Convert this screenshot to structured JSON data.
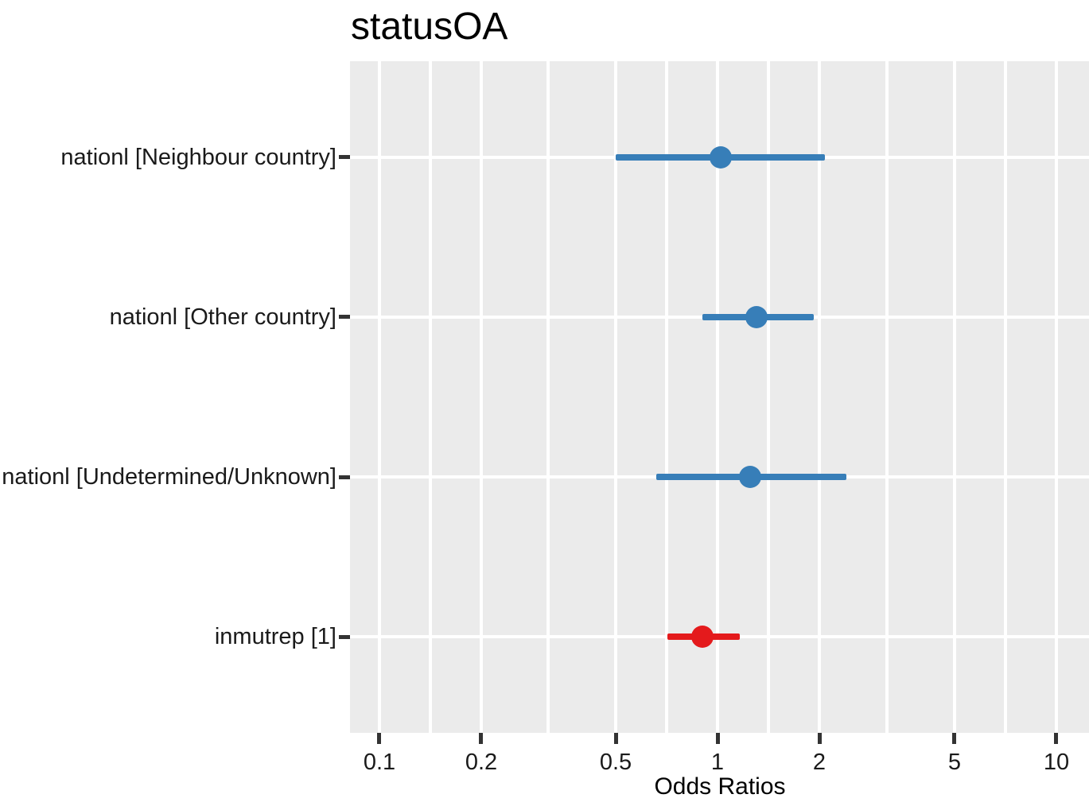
{
  "chart_data": {
    "type": "scatter",
    "subtype": "forest-plot (dot-and-whisker, odds ratios with 95% CI)",
    "title": "statusOA",
    "xlabel": "Odds Ratios",
    "x_scale": "log10",
    "xlim": [
      0.082,
      12.5
    ],
    "x_ticks": [
      0.1,
      0.2,
      0.5,
      1,
      2,
      5,
      10
    ],
    "x_tick_labels": [
      "0.1",
      "0.2",
      "0.5",
      "1",
      "2",
      "5",
      "10"
    ],
    "grid": "white major gridlines at ticks plus minor gridlines at log-midpoints, on gray panel; horizontal gridline per category row",
    "legend": "none",
    "rows": [
      {
        "label": "nationl [Neighbour country]",
        "or": 1.02,
        "ci_low": 0.5,
        "ci_high": 2.07,
        "color": "#377EB8"
      },
      {
        "label": "nationl [Other country]",
        "or": 1.3,
        "ci_low": 0.9,
        "ci_high": 1.92,
        "color": "#377EB8"
      },
      {
        "label": "nationl [Undetermined/Unknown]",
        "or": 1.25,
        "ci_low": 0.66,
        "ci_high": 2.4,
        "color": "#377EB8"
      },
      {
        "label": "inmutrep [1]",
        "or": 0.9,
        "ci_low": 0.71,
        "ci_high": 1.16,
        "color": "#E41A1C"
      }
    ],
    "colors": {
      "or_above_1": "#377EB8",
      "or_below_1": "#E41A1C",
      "panel_background": "#EBEBEB",
      "gridline": "#FFFFFF",
      "axis_tick": "#333333",
      "text": "#000000"
    }
  }
}
